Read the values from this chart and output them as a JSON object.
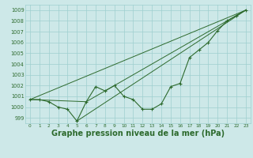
{
  "bg_color": "#cde8e8",
  "grid_color": "#9ecfcf",
  "line_color": "#2d6a2d",
  "marker_color": "#2d6a2d",
  "xlabel": "Graphe pression niveau de la mer (hPa)",
  "xlabel_fontsize": 7,
  "ylim": [
    998.5,
    1009.5
  ],
  "xlim": [
    -0.5,
    23.5
  ],
  "yticks": [
    999,
    1000,
    1001,
    1002,
    1003,
    1004,
    1005,
    1006,
    1007,
    1008,
    1009
  ],
  "xticks": [
    0,
    1,
    2,
    3,
    4,
    5,
    6,
    7,
    8,
    9,
    10,
    11,
    12,
    13,
    14,
    15,
    16,
    17,
    18,
    19,
    20,
    21,
    22,
    23
  ],
  "main_x": [
    0,
    1,
    2,
    3,
    4,
    5,
    6,
    7,
    8,
    9,
    10,
    11,
    12,
    13,
    14,
    15,
    16,
    17,
    18,
    19,
    20,
    21,
    22,
    23
  ],
  "main_y": [
    1000.7,
    1000.7,
    1000.5,
    1000.0,
    999.8,
    998.7,
    1000.5,
    1001.9,
    1001.5,
    1002.0,
    1001.0,
    1000.7,
    999.8,
    999.8,
    1000.3,
    1001.9,
    1002.2,
    1004.6,
    1005.3,
    1006.0,
    1007.1,
    1008.0,
    1008.5,
    1009.0
  ],
  "trend1_x": [
    0,
    23
  ],
  "trend1_y": [
    1000.7,
    1009.0
  ],
  "trend2_x": [
    0,
    6,
    23
  ],
  "trend2_y": [
    1000.7,
    1000.5,
    1009.0
  ],
  "trend3_x": [
    5,
    23
  ],
  "trend3_y": [
    998.7,
    1009.0
  ]
}
